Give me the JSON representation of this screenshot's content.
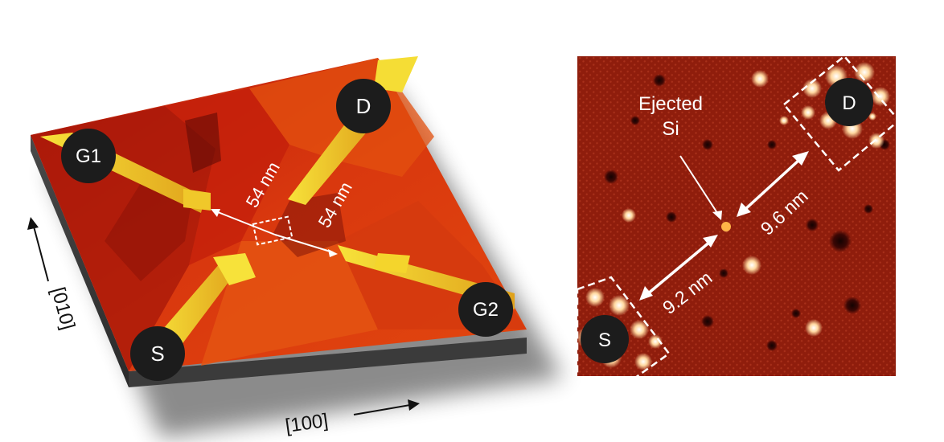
{
  "left_panel": {
    "electrodes": {
      "g1": "G1",
      "d": "D",
      "s": "S",
      "g2": "G2"
    },
    "distance_a": "54 nm",
    "distance_b": "54 nm",
    "axis_vertical": "[010]",
    "axis_horizontal": "[100]"
  },
  "right_panel": {
    "electrodes": {
      "d": "D",
      "s": "S"
    },
    "annotation_line1": "Ejected",
    "annotation_line2": "Si",
    "distance_upper": "9.6 nm",
    "distance_lower": "9.2 nm"
  },
  "colors": {
    "background": "#ffffff",
    "surface_dark_red": "#9e1408",
    "surface_red": "#c9230c",
    "surface_orange": "#e8520f",
    "surface_highlight": "#f3d624",
    "stm_background": "#8f1d0c",
    "label_circle": "#1c1c1c",
    "label_text": "#ffffff",
    "annotation": "#ffffff"
  }
}
